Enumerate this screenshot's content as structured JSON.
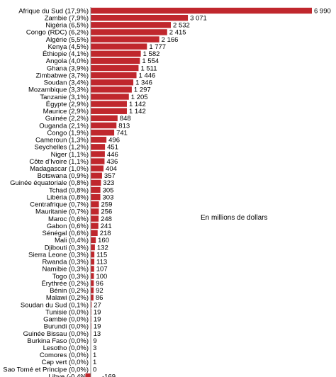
{
  "chart_data": {
    "type": "bar",
    "orientation": "horizontal",
    "annotation": "En millions de dollars",
    "bar_color": "#c0272d",
    "categories": [
      "Afrique du Sud (17,9%)",
      "Zambie (7,9%)",
      "Nigéria (6,5%)",
      "Congo (RDC) (6,2%)",
      "Algérie (5,5%)",
      "Kenya (4,5%)",
      "Éthiopie (4,1%)",
      "Angola (4,0%)",
      "Ghana (3,9%)",
      "Zimbabwe (3,7%)",
      "Soudan (3,4%)",
      "Mozambique (3,3%)",
      "Tanzanie (3,1%)",
      "Égypte (2,9%)",
      "Maurice (2,9%)",
      "Guinée (2,2%)",
      "Ouganda (2,1%)",
      "Congo (1,9%)",
      "Cameroun (1,3%)",
      "Seychelles (1,2%)",
      "Niger (1,1%)",
      "Côte d'Ivoire (1,1%)",
      "Madagascar (1,0%)",
      "Botswana (0,9%)",
      "Guinée équatoriale (0,8%)",
      "Tchad (0,8%)",
      "Libéria (0,8%)",
      "Centrafrique (0,7%)",
      "Mauritanie (0,7%)",
      "Maroc (0,6%)",
      "Gabon (0,6%)",
      "Sénégal (0,6%)",
      "Mali (0,4%)",
      "Djibouti (0,3%)",
      "Sierra Leone (0,3%)",
      "Rwanda (0,3%)",
      "Namibie (0,3%)",
      "Togo (0,3%)",
      "Érythrée (0,2%)",
      "Bénin (0,2%)",
      "Malawi (0,2%)",
      "Soudan du Sud (0,1%)",
      "Tunisie (0,0%)",
      "Gambie (0,0%)",
      "Burundi (0,0%)",
      "Guinée Bissau (0,0%)",
      "Burkina Faso (0,0%)",
      "Lesotho (0,0%)",
      "Comores (0,0%)",
      "Cap vert (0,0%)",
      "Sao Tomé et Principe (0,0%)",
      "Libye (-0,4%)"
    ],
    "values": [
      6990,
      3071,
      2532,
      2415,
      2166,
      1777,
      1582,
      1554,
      1511,
      1446,
      1346,
      1297,
      1205,
      1142,
      1142,
      848,
      813,
      741,
      496,
      451,
      446,
      436,
      404,
      357,
      323,
      305,
      303,
      259,
      256,
      248,
      241,
      218,
      160,
      132,
      115,
      113,
      107,
      100,
      96,
      92,
      86,
      27,
      19,
      19,
      19,
      13,
      9,
      3,
      1,
      1,
      0,
      -169
    ],
    "value_labels": [
      "6 990",
      "3 071",
      "2 532",
      "2 415",
      "2 166",
      "1 777",
      "1 582",
      "1 554",
      "1 511",
      "1 446",
      "1 346",
      "1 297",
      "1 205",
      "1 142",
      "1 142",
      "848",
      "813",
      "741",
      "496",
      "451",
      "446",
      "436",
      "404",
      "357",
      "323",
      "305",
      "303",
      "259",
      "256",
      "248",
      "241",
      "218",
      "160",
      "132",
      "115",
      "113",
      "107",
      "100",
      "96",
      "92",
      "86",
      "27",
      "19",
      "19",
      "19",
      "13",
      "9",
      "3",
      "1",
      "1",
      "0",
      "-169"
    ],
    "xlim": [
      -169,
      6990
    ]
  }
}
